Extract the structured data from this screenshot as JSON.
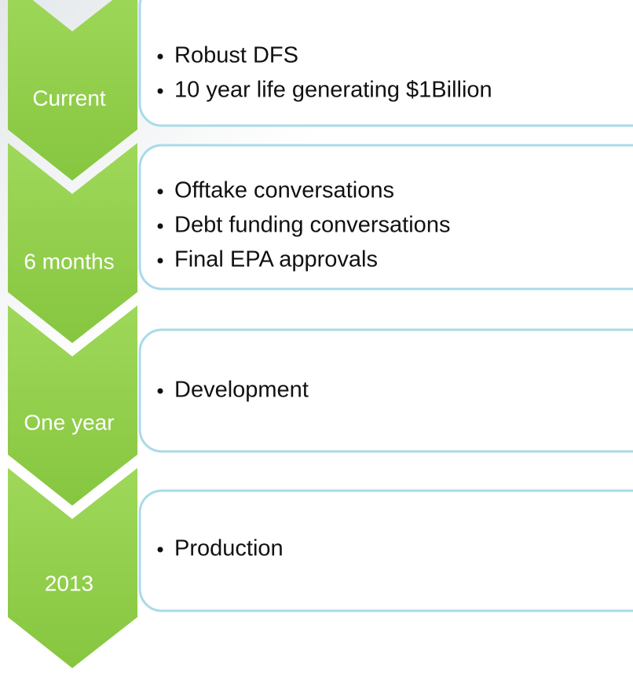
{
  "stages": [
    {
      "label": "Current",
      "items": [
        "Robust DFS",
        "10 year life generating $1Billion"
      ]
    },
    {
      "label": "6 months",
      "items": [
        "Offtake conversations",
        "Debt funding conversations",
        "Final EPA approvals"
      ]
    },
    {
      "label": "One year",
      "items": [
        "Development"
      ]
    },
    {
      "label": "2013",
      "items": [
        "Production"
      ]
    }
  ]
}
